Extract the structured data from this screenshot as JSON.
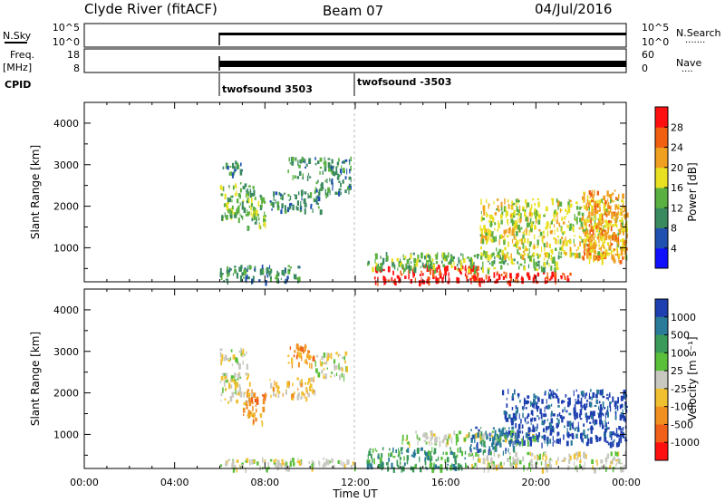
{
  "header": {
    "station": "Clyde River (fitACF)",
    "beam": "Beam 07",
    "date": "04/Jul/2016"
  },
  "panels": {
    "nsky": {
      "left_label": "N.Sky",
      "left_ticks": [
        "10^5",
        "10^0"
      ],
      "right_ticks": [
        "10^5",
        "10^0"
      ],
      "right_label": "N.Search",
      "right_dots": "·······"
    },
    "freq": {
      "left_label_top": "Freq.",
      "left_label_bottom": "[MHz]",
      "left_ticks": [
        "18",
        "8"
      ],
      "right_ticks": [
        "60",
        "0"
      ],
      "right_label": "Nave",
      "right_dots": "····"
    },
    "cpid": {
      "label": "CPID",
      "segments": [
        {
          "label": "twofsound 3503",
          "start_hour": 6
        },
        {
          "label": "twofsound -3503",
          "start_hour": 12
        }
      ]
    }
  },
  "axes": {
    "ylabel": "Slant Range [km]",
    "xlabel": "Time UT",
    "x_ticks": [
      "00:00",
      "04:00",
      "08:00",
      "12:00",
      "16:00",
      "20:00",
      "00:00"
    ],
    "y_ticks": [
      "1000",
      "2000",
      "3000",
      "4000"
    ]
  },
  "colorbars": {
    "power": {
      "label": "Power [dB]",
      "ticks": [
        "4",
        "8",
        "12",
        "16",
        "20",
        "24",
        "28"
      ],
      "colors": [
        "#1010ff",
        "#2050b0",
        "#3a8a60",
        "#5ab040",
        "#e8e020",
        "#f0a020",
        "#f06010",
        "#ff1010"
      ]
    },
    "velocity": {
      "label": "Velocity [m s⁻¹]",
      "ticks": [
        "1000",
        "500",
        "100",
        "25",
        "-25",
        "-100",
        "-500",
        "-1000"
      ],
      "colors": [
        "#1e3fb0",
        "#2a7a9a",
        "#3a9a5a",
        "#5ac03a",
        "#c8c8c0",
        "#f0c030",
        "#f09020",
        "#f06018",
        "#ff1010"
      ]
    }
  },
  "chart_data": [
    {
      "type": "heatmap",
      "parameter": "Power [dB]",
      "x_unit": "hour UT",
      "y_unit": "km",
      "xlim": [
        0,
        24
      ],
      "ylim": [
        180,
        4500
      ],
      "data_start_hour": 6,
      "regions": [
        {
          "x": [
            6.0,
            7.1
          ],
          "y": [
            2800,
            3100
          ],
          "level": 2
        },
        {
          "x": [
            6.0,
            7.5
          ],
          "y": [
            1700,
            2600
          ],
          "level": 3
        },
        {
          "x": [
            7.2,
            8.0
          ],
          "y": [
            1500,
            2300
          ],
          "level": 3
        },
        {
          "x": [
            8.2,
            10.5
          ],
          "y": [
            1900,
            2400
          ],
          "level": 2
        },
        {
          "x": [
            9.0,
            10.0
          ],
          "y": [
            2700,
            3200
          ],
          "level": 2
        },
        {
          "x": [
            10.2,
            11.8
          ],
          "y": [
            2300,
            3200
          ],
          "level": 2
        },
        {
          "x": [
            6.0,
            9.5
          ],
          "y": [
            200,
            600
          ],
          "level": 2
        },
        {
          "x": [
            12.8,
            17.5
          ],
          "y": [
            200,
            600
          ],
          "level": 7
        },
        {
          "x": [
            17.0,
            21.5
          ],
          "y": [
            200,
            450
          ],
          "level": 7
        },
        {
          "x": [
            12.5,
            21.0
          ],
          "y": [
            500,
            900
          ],
          "level": 3
        },
        {
          "x": [
            17.5,
            24.0
          ],
          "y": [
            800,
            2200
          ],
          "level": 4
        },
        {
          "x": [
            22.0,
            24.0
          ],
          "y": [
            700,
            2400
          ],
          "level": 5
        }
      ]
    },
    {
      "type": "heatmap",
      "parameter": "Velocity [m s⁻¹]",
      "x_unit": "hour UT",
      "y_unit": "km",
      "xlim": [
        0,
        24
      ],
      "ylim": [
        180,
        4500
      ],
      "data_start_hour": 6,
      "regions": [
        {
          "x": [
            6.0,
            7.2
          ],
          "y": [
            2700,
            3100
          ],
          "level": 4
        },
        {
          "x": [
            6.0,
            7.4
          ],
          "y": [
            1800,
            2500
          ],
          "level": 4
        },
        {
          "x": [
            7.0,
            8.0
          ],
          "y": [
            1300,
            2100
          ],
          "level": 6
        },
        {
          "x": [
            8.2,
            10.2
          ],
          "y": [
            1900,
            2400
          ],
          "level": 5
        },
        {
          "x": [
            9.0,
            10.2
          ],
          "y": [
            2700,
            3200
          ],
          "level": 6
        },
        {
          "x": [
            10.2,
            11.6
          ],
          "y": [
            2400,
            3000
          ],
          "level": 4
        },
        {
          "x": [
            6.0,
            12.0
          ],
          "y": [
            200,
            450
          ],
          "level": 4
        },
        {
          "x": [
            12.5,
            17.0
          ],
          "y": [
            200,
            700
          ],
          "level": 2
        },
        {
          "x": [
            14.0,
            20.0
          ],
          "y": [
            800,
            1100
          ],
          "level": 4
        },
        {
          "x": [
            17.0,
            24.0
          ],
          "y": [
            200,
            600
          ],
          "level": 4
        },
        {
          "x": [
            18.5,
            24.0
          ],
          "y": [
            800,
            2100
          ],
          "level": 0
        },
        {
          "x": [
            17.0,
            19.0
          ],
          "y": [
            600,
            1200
          ],
          "level": 1
        }
      ]
    }
  ]
}
